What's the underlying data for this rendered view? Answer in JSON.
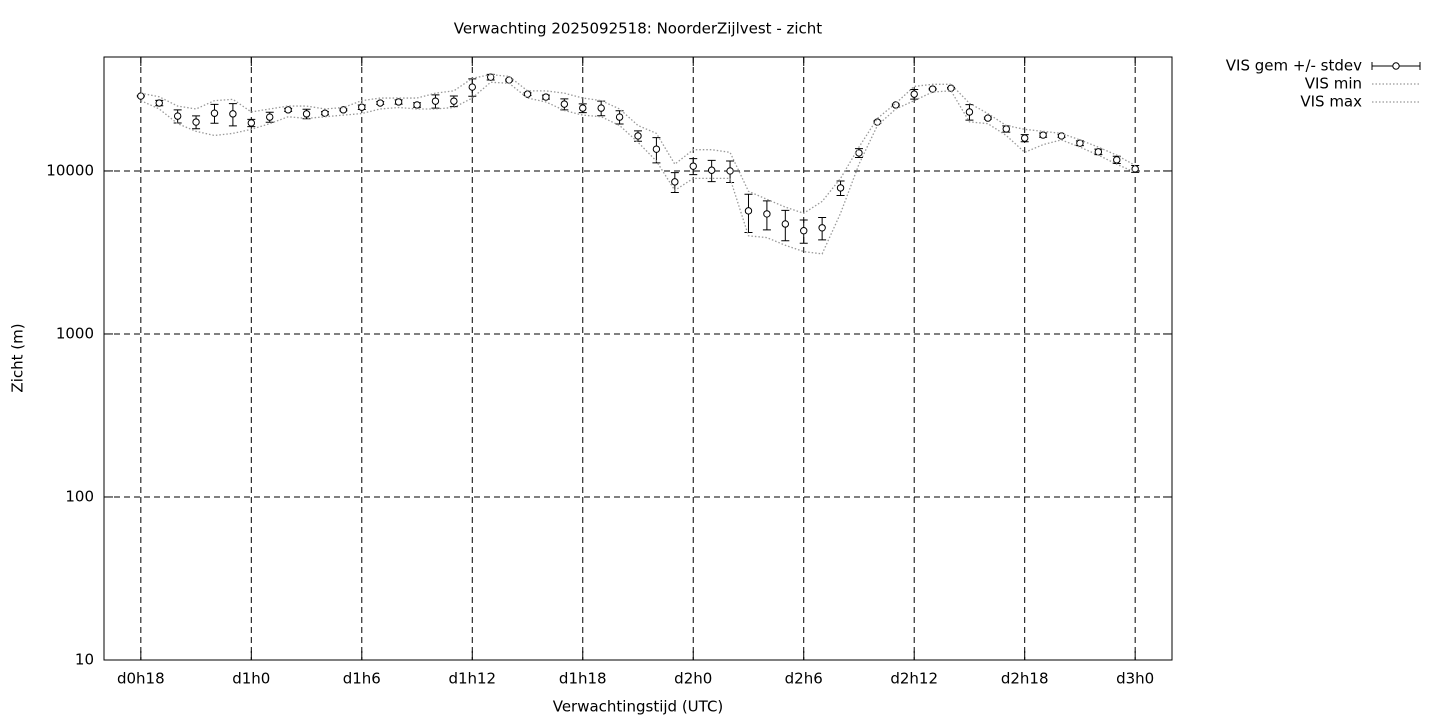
{
  "chart_data": {
    "type": "line",
    "title": "Verwachting 2025092518: NoorderZijlvest - zicht",
    "x_label": "Verwachtingstijd (UTC)",
    "y_label": "Zicht (m)",
    "x": [
      18,
      19,
      20,
      21,
      22,
      23,
      24,
      25,
      26,
      27,
      28,
      29,
      30,
      31,
      32,
      33,
      34,
      35,
      36,
      37,
      38,
      39,
      40,
      41,
      42,
      43,
      44,
      45,
      46,
      47,
      48,
      49,
      50,
      51,
      52,
      53,
      54,
      55,
      56,
      57,
      58,
      59,
      60,
      61,
      62,
      63,
      64,
      65,
      66,
      67,
      68,
      69,
      70,
      71,
      72
    ],
    "xlim": [
      16,
      74
    ],
    "xticks": [
      {
        "value": 18,
        "label": "d0h18"
      },
      {
        "value": 24,
        "label": "d1h0"
      },
      {
        "value": 30,
        "label": "d1h6"
      },
      {
        "value": 36,
        "label": "d1h12"
      },
      {
        "value": 42,
        "label": "d1h18"
      },
      {
        "value": 48,
        "label": "d2h0"
      },
      {
        "value": 54,
        "label": "d2h6"
      },
      {
        "value": 60,
        "label": "d2h12"
      },
      {
        "value": 66,
        "label": "d2h18"
      },
      {
        "value": 72,
        "label": "d3h0"
      }
    ],
    "ylim": [
      10,
      50000
    ],
    "yticks": [
      10,
      100,
      1000,
      10000
    ],
    "log_y": true,
    "grid": true,
    "legend": "outside-top-right",
    "series": [
      {
        "name": "VIS gem +/- stdev",
        "style": "points-errorbars",
        "color": "#000000",
        "values": [
          28800,
          26100,
          21700,
          19950,
          22600,
          22400,
          19700,
          21400,
          23700,
          22400,
          22600,
          23700,
          24600,
          26100,
          26500,
          25400,
          26800,
          26800,
          32700,
          37600,
          36100,
          29600,
          28400,
          25700,
          24300,
          24300,
          21400,
          16400,
          13600,
          8570,
          10700,
          10100,
          10000,
          5690,
          5450,
          4730,
          4300,
          4480,
          7870,
          12900,
          19950,
          25400,
          29600,
          31800,
          32200,
          23000,
          21100,
          18100,
          15900,
          16600,
          16400,
          14800,
          13100,
          11700,
          10300
        ],
        "errors": [
          300,
          1000,
          2000,
          1800,
          3000,
          3500,
          1000,
          1500,
          500,
          1500,
          500,
          300,
          800,
          500,
          800,
          800,
          2500,
          2000,
          4000,
          1500,
          500,
          500,
          800,
          2000,
          1500,
          2500,
          2000,
          1200,
          2400,
          1200,
          1200,
          1500,
          1500,
          1500,
          1100,
          1000,
          700,
          700,
          800,
          800,
          300,
          300,
          2000,
          300,
          300,
          2500,
          300,
          800,
          800,
          500,
          300,
          500,
          500,
          600,
          500
        ]
      },
      {
        "name": "VIS min",
        "style": "dotted",
        "color": "#999999",
        "values": [
          27000,
          24000,
          19500,
          17500,
          16500,
          17000,
          18000,
          19500,
          21500,
          21000,
          21500,
          22000,
          22500,
          24000,
          24500,
          24000,
          24000,
          24500,
          28000,
          35000,
          34500,
          28000,
          26500,
          23500,
          22000,
          21500,
          19000,
          15000,
          11500,
          7600,
          9000,
          9000,
          9000,
          4000,
          3900,
          3500,
          3200,
          3100,
          5500,
          11000,
          19000,
          24000,
          27000,
          30500,
          31000,
          20000,
          19500,
          16500,
          13000,
          14500,
          15500,
          14000,
          12500,
          11000,
          9800
        ]
      },
      {
        "name": "VIS max",
        "style": "dotted",
        "color": "#999999",
        "values": [
          30000,
          28500,
          25000,
          24000,
          27000,
          27500,
          23000,
          24000,
          25000,
          25000,
          24000,
          24500,
          27000,
          28000,
          28000,
          28000,
          30000,
          31000,
          37000,
          39000,
          38000,
          31000,
          31000,
          30000,
          28000,
          27000,
          24000,
          19000,
          17000,
          11000,
          13500,
          13500,
          13000,
          7500,
          6700,
          6000,
          5500,
          6500,
          9000,
          14000,
          21000,
          26000,
          33000,
          34000,
          34000,
          26000,
          22500,
          19000,
          18000,
          17500,
          17000,
          15500,
          14000,
          12500,
          10800
        ]
      }
    ]
  }
}
